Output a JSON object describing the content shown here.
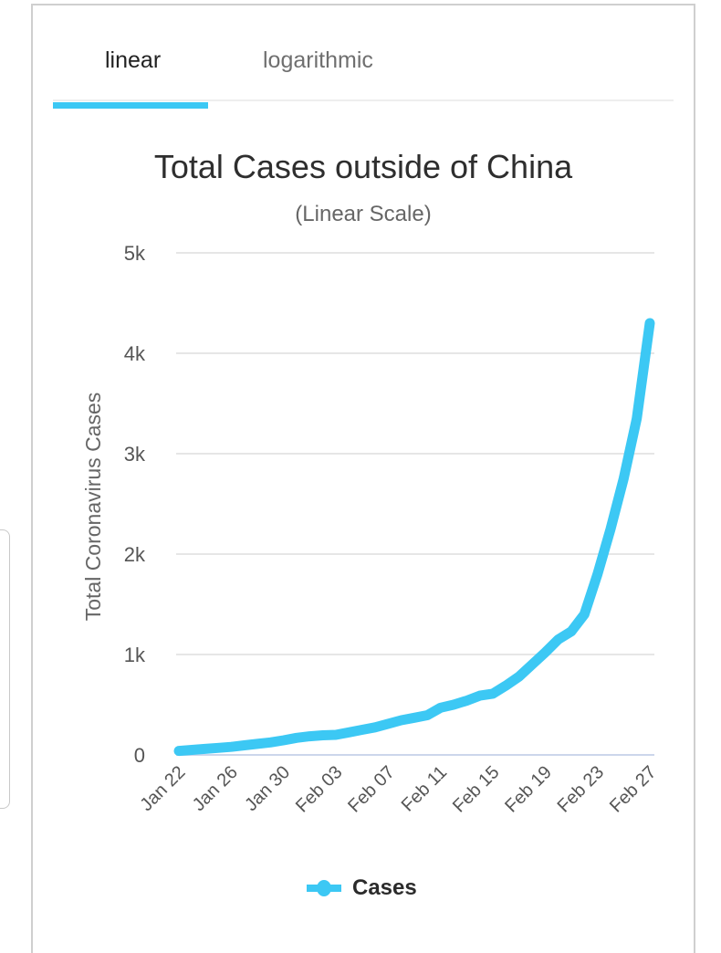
{
  "tabs": [
    {
      "label": "linear",
      "active": true
    },
    {
      "label": "logarithmic",
      "active": false
    }
  ],
  "colors": {
    "accent": "#3cc8f4",
    "grid": "#e6e6e6",
    "axis": "#ccd6eb",
    "text": "#2e2e2e"
  },
  "chart_data": {
    "type": "line",
    "title": "Total Cases outside of China",
    "subtitle": "(Linear Scale)",
    "xlabel": "",
    "ylabel": "Total Coronavirus Cases",
    "ylim": [
      0,
      5000
    ],
    "yticks": [
      0,
      1000,
      2000,
      3000,
      4000,
      5000
    ],
    "ytick_labels": [
      "0",
      "1k",
      "2k",
      "3k",
      "4k",
      "5k"
    ],
    "grid": true,
    "legend_position": "bottom-center",
    "x": [
      "Jan 22",
      "Jan 23",
      "Jan 24",
      "Jan 25",
      "Jan 26",
      "Jan 27",
      "Jan 28",
      "Jan 29",
      "Jan 30",
      "Jan 31",
      "Feb 01",
      "Feb 02",
      "Feb 03",
      "Feb 04",
      "Feb 05",
      "Feb 06",
      "Feb 07",
      "Feb 08",
      "Feb 09",
      "Feb 10",
      "Feb 11",
      "Feb 12",
      "Feb 13",
      "Feb 14",
      "Feb 15",
      "Feb 16",
      "Feb 17",
      "Feb 18",
      "Feb 19",
      "Feb 20",
      "Feb 21",
      "Feb 22",
      "Feb 23",
      "Feb 24",
      "Feb 25",
      "Feb 26",
      "Feb 27"
    ],
    "xtick_labels": [
      "Jan 22",
      "Jan 26",
      "Jan 30",
      "Feb 03",
      "Feb 07",
      "Feb 11",
      "Feb 15",
      "Feb 19",
      "Feb 23",
      "Feb 27"
    ],
    "series": [
      {
        "name": "Cases",
        "color": "#3cc8f4",
        "values": [
          40,
          50,
          60,
          70,
          80,
          95,
          110,
          125,
          145,
          170,
          185,
          195,
          200,
          225,
          250,
          275,
          310,
          345,
          370,
          395,
          470,
          500,
          540,
          590,
          610,
          690,
          780,
          900,
          1020,
          1150,
          1230,
          1400,
          1800,
          2250,
          2750,
          3350,
          4300
        ]
      }
    ]
  }
}
